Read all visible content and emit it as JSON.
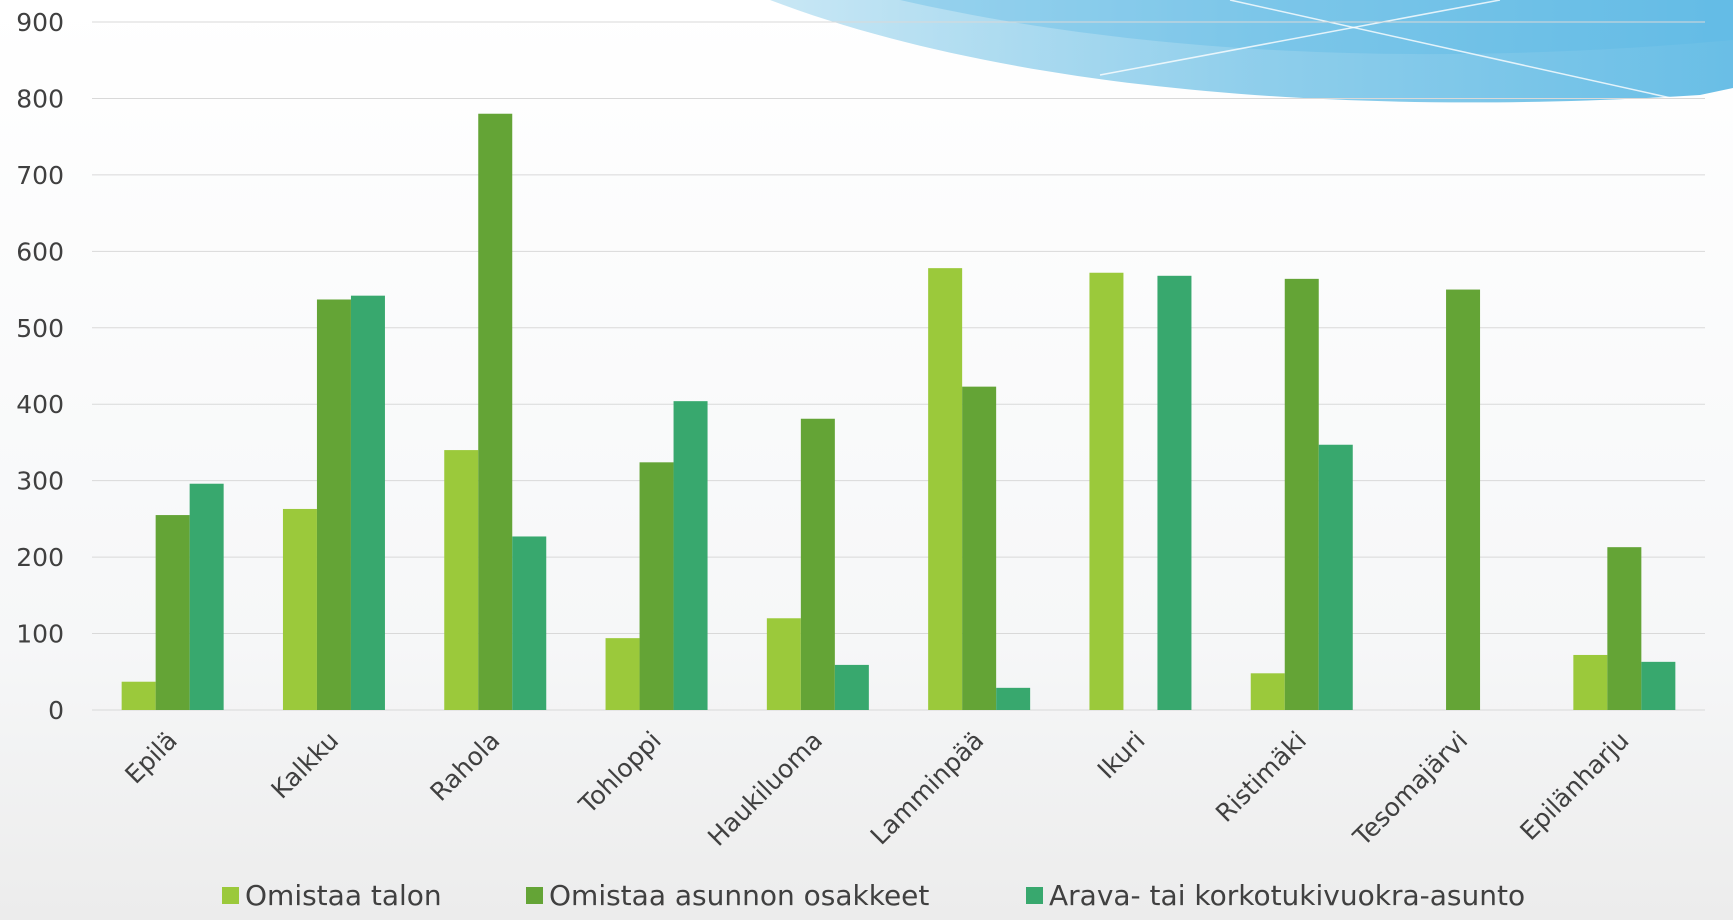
{
  "chart_data": {
    "type": "bar",
    "title": "",
    "xlabel": "",
    "ylabel": "",
    "ylim": [
      0,
      900
    ],
    "yticks": [
      0,
      100,
      200,
      300,
      400,
      500,
      600,
      700,
      800,
      900
    ],
    "grid": true,
    "legend_position": "bottom",
    "categories": [
      "Epilä",
      "Kalkku",
      "Rahola",
      "Tohloppi",
      "Haukiluoma",
      "Lamminpää",
      "Ikuri",
      "Ristimäki",
      "Tesomajärvi",
      "Epilänharju"
    ],
    "series": [
      {
        "name": "Omistaa talon",
        "color": "#9bc93b",
        "values": [
          37,
          263,
          340,
          94,
          120,
          578,
          572,
          48,
          0,
          72
        ]
      },
      {
        "name": "Omistaa asunnon osakkeet",
        "color": "#64a436",
        "values": [
          255,
          537,
          780,
          324,
          381,
          423,
          0,
          564,
          550,
          213
        ]
      },
      {
        "name": "Arava- tai korkotukivuokra-asunto",
        "color": "#38a86e",
        "values": [
          296,
          542,
          227,
          404,
          59,
          29,
          568,
          347,
          0,
          63
        ]
      }
    ]
  }
}
